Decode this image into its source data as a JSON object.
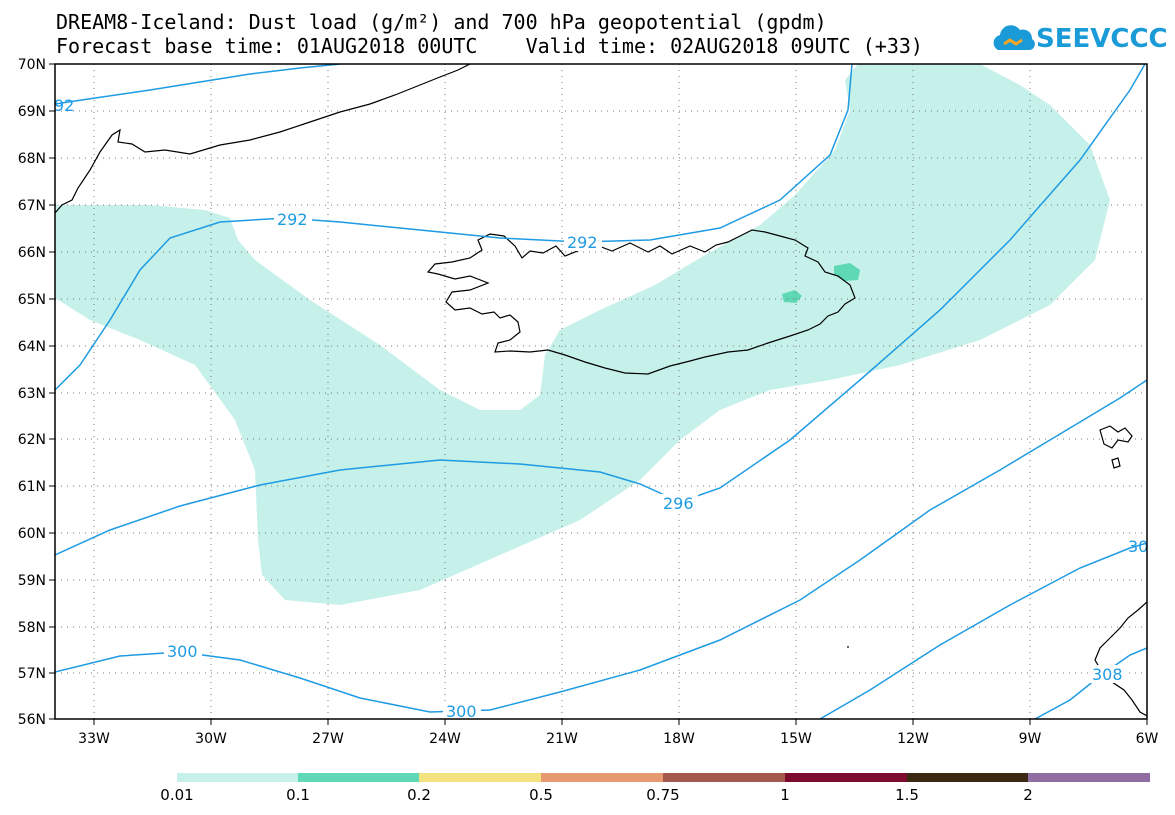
{
  "title": {
    "line1": "DREAM8-Iceland: Dust load (g/m²) and 700 hPa geopotential (gpdm)",
    "line2": "Forecast base time: 01AUG2018 00UTC    Valid time: 02AUG2018 09UTC (+33)"
  },
  "logo": {
    "text": "SEEVCCC"
  },
  "axes": {
    "lat_labels": [
      "70N",
      "69N",
      "68N",
      "67N",
      "66N",
      "65N",
      "64N",
      "63N",
      "62N",
      "61N",
      "60N",
      "59N",
      "58N",
      "57N",
      "56N"
    ],
    "lon_labels": [
      "33W",
      "30W",
      "27W",
      "24W",
      "21W",
      "18W",
      "15W",
      "12W",
      "9W",
      "6W"
    ]
  },
  "contour_labels": {
    "c292_top": "92",
    "c292_a": "292",
    "c292_b": "292",
    "c296": "296",
    "c300_a": "300",
    "c300_b": "300",
    "c30x_right": "30",
    "c308": "308"
  },
  "colorbar": {
    "labels": [
      "0.01",
      "0.1",
      "0.2",
      "0.5",
      "0.75",
      "1",
      "1.5",
      "2"
    ],
    "colors": [
      "#c6f1ea",
      "#5ed8b5",
      "#f3e27e",
      "#e79a72",
      "#a4584e",
      "#7e0a30",
      "#3c2913",
      "#916ea1"
    ]
  },
  "colors": {
    "dust_light": "#c6f1ea",
    "dust_mid": "#5ed8b5",
    "contour": "#1e9be3",
    "coast": "#000000"
  }
}
